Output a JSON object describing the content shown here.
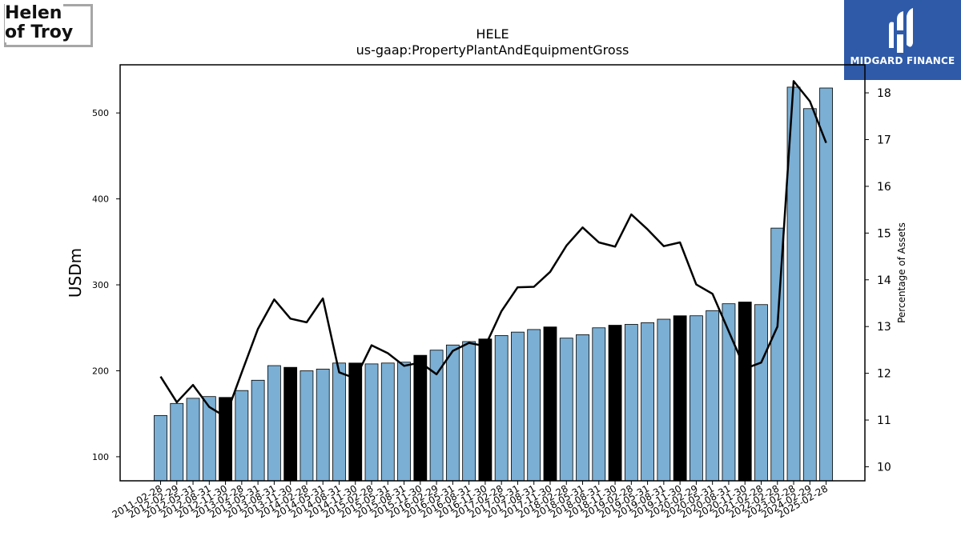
{
  "logo_left": {
    "line1": "Helen",
    "line2": "of Troy"
  },
  "logo_right": {
    "brand": "MIDGARD FINANCE",
    "icon": "midgard-logo-icon"
  },
  "chart_data": {
    "type": "bar",
    "title": "HELE",
    "subtitle": "us-gaap:PropertyPlantAndEquipmentGross",
    "ylabel": "USDm",
    "y2label": "Percentage of Assets",
    "ylim": [
      72,
      556
    ],
    "y2lim": [
      9.7,
      18.6
    ],
    "yticks": [
      100,
      200,
      300,
      400,
      500
    ],
    "y2ticks": [
      10,
      11,
      12,
      13,
      14,
      15,
      16,
      17,
      18
    ],
    "colors": {
      "bar": "#7bafd4",
      "highlight_bar": "#000000",
      "line": "#000000"
    },
    "categories": [
      "2011-02-28",
      "2012-02-29",
      "2012-05-31",
      "2012-08-31",
      "2012-11-30",
      "2013-02-28",
      "2013-05-31",
      "2013-08-31",
      "2013-11-30",
      "2014-02-28",
      "2014-05-31",
      "2014-08-31",
      "2014-11-30",
      "2015-02-28",
      "2015-05-31",
      "2015-08-31",
      "2015-11-30",
      "2016-02-29",
      "2016-05-31",
      "2016-08-31",
      "2016-11-30",
      "2017-02-28",
      "2017-05-31",
      "2017-08-31",
      "2017-11-30",
      "2018-02-28",
      "2018-05-31",
      "2018-08-31",
      "2018-11-30",
      "2019-02-28",
      "2019-05-31",
      "2019-08-31",
      "2019-11-30",
      "2020-02-29",
      "2020-05-31",
      "2020-08-31",
      "2020-11-30",
      "2021-02-28",
      "2022-02-28",
      "2023-02-28",
      "2024-02-29",
      "2025-02-28"
    ],
    "highlight": [
      false,
      false,
      false,
      false,
      true,
      false,
      false,
      false,
      true,
      false,
      false,
      false,
      true,
      false,
      false,
      false,
      true,
      false,
      false,
      false,
      true,
      false,
      false,
      false,
      true,
      false,
      false,
      false,
      true,
      false,
      false,
      false,
      true,
      false,
      false,
      false,
      true,
      false,
      false,
      false,
      false,
      false
    ],
    "series": [
      {
        "type": "bar",
        "values": [
          148,
          162,
          168,
          170,
          169,
          177,
          189,
          206,
          204,
          200,
          202,
          209,
          209,
          208,
          209,
          210,
          218,
          224,
          230,
          234,
          237,
          241,
          245,
          248,
          251,
          238,
          242,
          250,
          253,
          254,
          256,
          260,
          264,
          264,
          270,
          278,
          280,
          277,
          366,
          530,
          505,
          529
        ]
      },
      {
        "type": "line",
        "axis": "right",
        "values": [
          11.93,
          11.38,
          11.75,
          11.28,
          11.07,
          12.02,
          12.95,
          13.58,
          13.17,
          13.09,
          13.6,
          12.02,
          11.89,
          12.6,
          12.43,
          12.16,
          12.23,
          11.98,
          12.48,
          12.65,
          12.58,
          13.33,
          13.84,
          13.85,
          14.17,
          14.73,
          15.12,
          14.8,
          14.71,
          15.4,
          15.08,
          14.72,
          14.8,
          13.9,
          13.7,
          12.9,
          12.1,
          12.23,
          13.0,
          18.25,
          17.82,
          16.93
        ]
      }
    ]
  }
}
